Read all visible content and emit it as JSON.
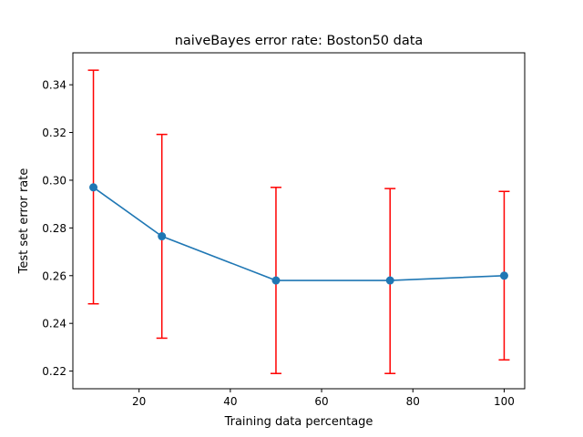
{
  "chart_data": {
    "type": "line",
    "title": "naiveBayes error rate: Boston50 data",
    "xlabel": "Training data percentage",
    "ylabel": "Test set error rate",
    "xlim": [
      5.5,
      104.5
    ],
    "ylim": [
      0.2126,
      0.3534
    ],
    "x_ticks": [
      "20",
      "40",
      "60",
      "80",
      "100"
    ],
    "y_ticks": [
      "0.22",
      "0.24",
      "0.26",
      "0.28",
      "0.30",
      "0.32",
      "0.34"
    ],
    "grid": false,
    "series": [
      {
        "x": [
          10,
          25,
          50,
          75,
          100
        ],
        "y": [
          0.297,
          0.2765,
          0.258,
          0.258,
          0.26
        ],
        "yerr_low": [
          0.2482,
          0.2338,
          0.219,
          0.219,
          0.2247
        ],
        "yerr_high": [
          0.3461,
          0.3192,
          0.297,
          0.2965,
          0.2953
        ],
        "line_color": "#1f77b4",
        "errorbar_color": "#ff0000"
      }
    ]
  }
}
